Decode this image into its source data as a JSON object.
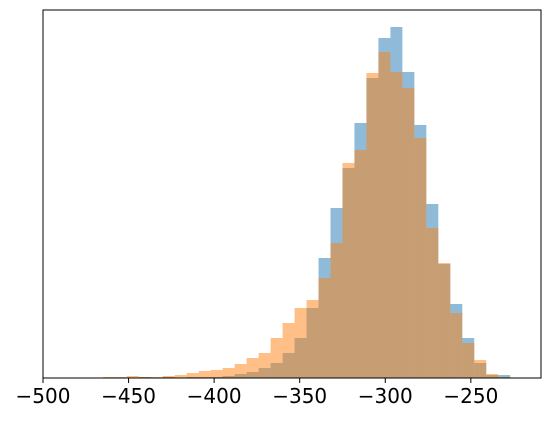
{
  "chart_data": {
    "type": "histogram",
    "bins": [
      -472,
      -465,
      -458,
      -451,
      -444,
      -437,
      -430,
      -423,
      -416,
      -409,
      -402,
      -395,
      -388,
      -381,
      -374,
      -367,
      -360,
      -353,
      -346,
      -339,
      -332,
      -325,
      -318,
      -311,
      -304,
      -297,
      -290,
      -283,
      -276,
      -269,
      -262,
      -255,
      -248,
      -241,
      -234,
      -227,
      -220
    ],
    "series": [
      {
        "color": "#1f77b4",
        "values": [
          0,
          0,
          0,
          0,
          1,
          0,
          1,
          0,
          1,
          1,
          1,
          2,
          4,
          6,
          10,
          15,
          25,
          40,
          70,
          120,
          170,
          210,
          255,
          300,
          340,
          351,
          306,
          253,
          174,
          114,
          74,
          40,
          15,
          3,
          3,
          0
        ]
      },
      {
        "color": "#ff7f0e",
        "values": [
          0,
          1,
          1,
          2,
          1,
          1,
          2,
          3,
          5,
          7,
          8,
          10,
          14,
          20,
          25,
          40,
          55,
          70,
          78,
          100,
          135,
          215,
          228,
          305,
          326,
          306,
          290,
          240,
          150,
          115,
          65,
          35,
          18,
          4,
          1,
          0
        ]
      }
    ],
    "xlim": [
      -500,
      -209
    ],
    "ylim": [
      0,
      368
    ],
    "xticks": [
      {
        "value": -500,
        "label": "−500"
      },
      {
        "value": -450,
        "label": "−450"
      },
      {
        "value": -400,
        "label": "−400"
      },
      {
        "value": -350,
        "label": "−350"
      },
      {
        "value": -300,
        "label": "−300"
      },
      {
        "value": -250,
        "label": "−250"
      }
    ]
  }
}
